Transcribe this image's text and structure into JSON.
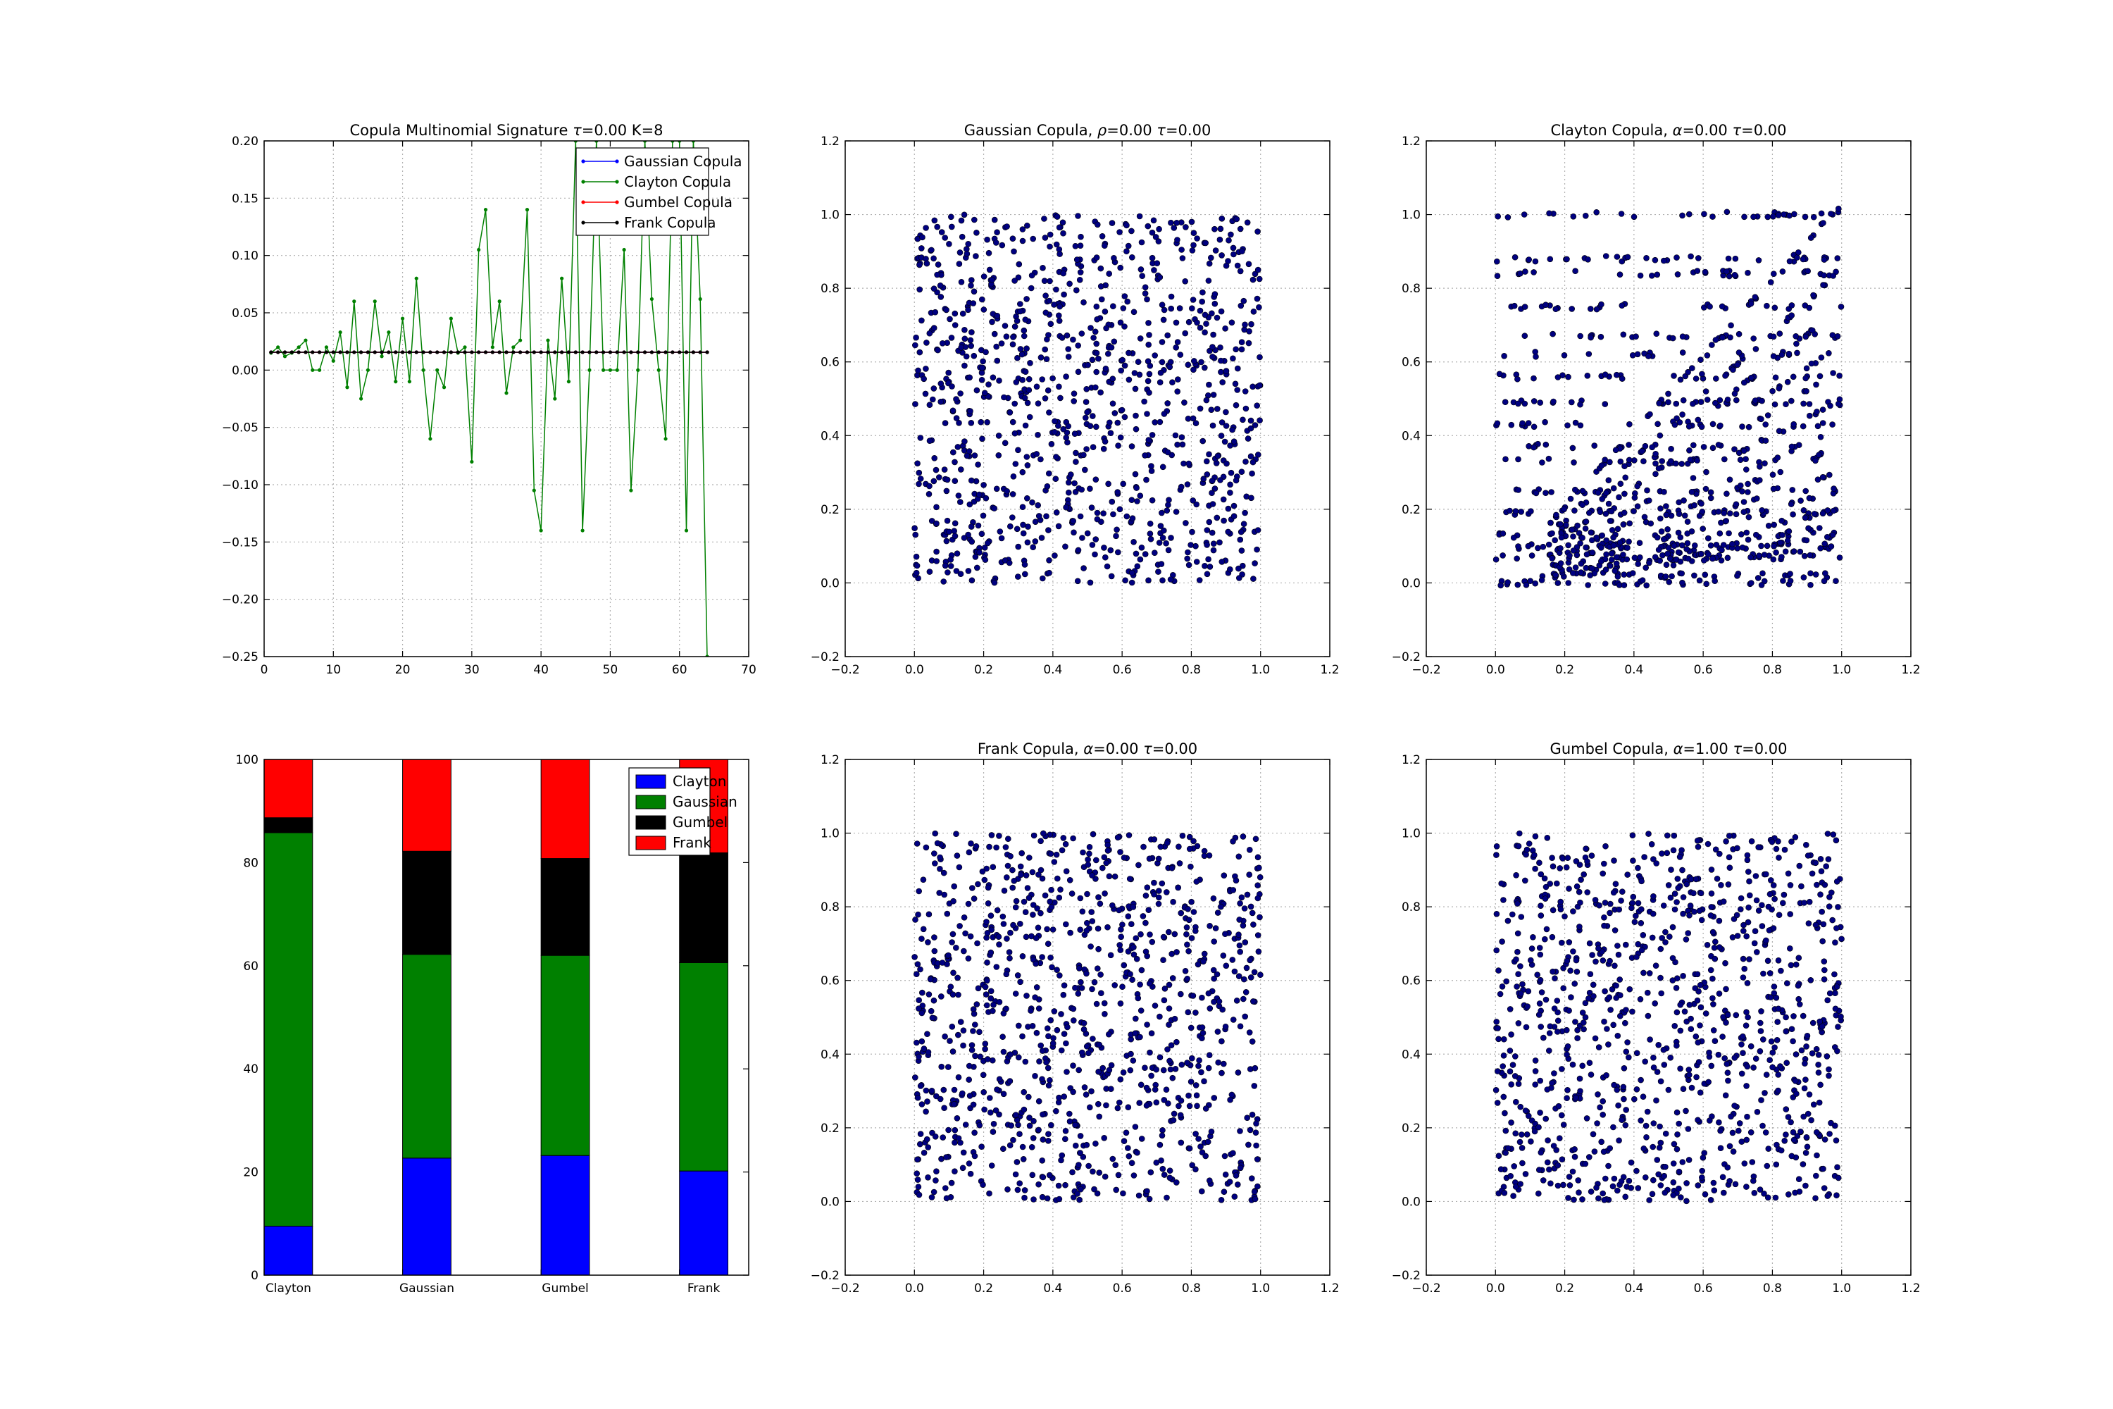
{
  "figure": {
    "panels": [
      {
        "id": "signature",
        "title_parts": [
          "Copula Multinomial Signature ",
          "τ",
          "=0.00 K=8"
        ]
      },
      {
        "id": "gaussian",
        "title_parts": [
          "Gaussian Copula, ",
          "ρ",
          "=0.00 ",
          "τ",
          "=0.00"
        ]
      },
      {
        "id": "clayton",
        "title_parts": [
          "Clayton Copula, ",
          "α",
          "=0.00 ",
          "τ",
          "=0.00"
        ]
      },
      {
        "id": "bars",
        "title_parts": []
      },
      {
        "id": "frank",
        "title_parts": [
          "Frank Copula, ",
          "α",
          "=0.00 ",
          "τ",
          "=0.00"
        ]
      },
      {
        "id": "gumbel",
        "title_parts": [
          "Gumbel Copula, ",
          "α",
          "=1.00 ",
          "τ",
          "=0.00"
        ]
      }
    ]
  },
  "chart_data": [
    {
      "type": "line",
      "panel": "signature",
      "title": "Copula Multinomial Signature τ=0.00 K=8",
      "xlim": [
        0,
        70
      ],
      "ylim": [
        -0.25,
        0.2
      ],
      "xticks": [
        "0",
        "10",
        "20",
        "30",
        "40",
        "50",
        "60",
        "70"
      ],
      "yticks": [
        "−0.25",
        "−0.20",
        "−0.15",
        "−0.10",
        "−0.05",
        "0.00",
        "0.05",
        "0.10",
        "0.15",
        "0.20"
      ],
      "grid": true,
      "legend_position": "top-right",
      "colors": {
        "Gaussian Copula": "#0000ff",
        "Clayton Copula": "#008000",
        "Gumbel Copula": "#ff0000",
        "Frank Copula": "#000000"
      },
      "series": [
        {
          "name": "Gaussian Copula",
          "x_start": 1,
          "x_end": 64,
          "constant": 0.0156
        },
        {
          "name": "Clayton Copula",
          "x": [
            1,
            2,
            3,
            4,
            5,
            6,
            7,
            8,
            9,
            10,
            11,
            12,
            13,
            14,
            15,
            16,
            17,
            18,
            19,
            20,
            21,
            22,
            23,
            24,
            25,
            26,
            27,
            28,
            29,
            30,
            31,
            32,
            33,
            34,
            35,
            36,
            37,
            38,
            39,
            40,
            41,
            42,
            43,
            44,
            45,
            46,
            47,
            48,
            49,
            50,
            51,
            52,
            53,
            54,
            55,
            56,
            57,
            58,
            59,
            60,
            61,
            62,
            63,
            64
          ],
          "y": [
            0.015,
            0.02,
            0.012,
            0.015,
            0.02,
            0.026,
            0.0,
            0.0,
            0.02,
            0.008,
            0.033,
            -0.015,
            0.06,
            -0.025,
            0.0,
            0.06,
            0.012,
            0.033,
            -0.01,
            0.045,
            -0.01,
            0.08,
            0.0,
            -0.06,
            0.0,
            -0.015,
            0.045,
            0.015,
            0.02,
            -0.08,
            0.105,
            0.14,
            0.02,
            0.06,
            -0.02,
            0.02,
            0.026,
            0.14,
            -0.105,
            -0.14,
            0.026,
            -0.025,
            0.08,
            -0.01,
            0.2,
            -0.14,
            0.0,
            0.2,
            0.0,
            0.0,
            0.0,
            0.105,
            -0.105,
            0.0,
            0.2,
            0.062,
            0.0,
            -0.06,
            0.2,
            0.2,
            -0.14,
            0.2,
            0.062,
            -0.25
          ]
        },
        {
          "name": "Gumbel Copula",
          "x_start": 1,
          "x_end": 64,
          "constant": 0.0156
        },
        {
          "name": "Frank Copula",
          "x_start": 1,
          "x_end": 64,
          "constant": 0.0156
        }
      ]
    },
    {
      "type": "scatter",
      "panel": "gaussian",
      "title": "Gaussian Copula, ρ=0.00 τ=0.00",
      "xlim": [
        -0.2,
        1.2
      ],
      "ylim": [
        -0.2,
        1.2
      ],
      "xticks": [
        "−0.2",
        "0.0",
        "0.2",
        "0.4",
        "0.6",
        "0.8",
        "1.0",
        "1.2"
      ],
      "yticks": [
        "−0.2",
        "0.0",
        "0.2",
        "0.4",
        "0.6",
        "0.8",
        "1.0",
        "1.2"
      ],
      "grid": true,
      "pattern": "independent uniform points on [0,1]×[0,1]",
      "n_points": 1000,
      "point_color": "#000080"
    },
    {
      "type": "scatter",
      "panel": "clayton",
      "title": "Clayton Copula, α=0.00 τ=0.00",
      "xlim": [
        -0.2,
        1.2
      ],
      "ylim": [
        -0.2,
        1.2
      ],
      "xticks": [
        "−0.2",
        "0.0",
        "0.2",
        "0.4",
        "0.6",
        "0.8",
        "1.0",
        "1.2"
      ],
      "yticks": [
        "−0.2",
        "0.0",
        "0.2",
        "0.4",
        "0.6",
        "0.8",
        "1.0",
        "1.2"
      ],
      "grid": true,
      "pattern": "points on rays from origin, clustered in horizontal bands",
      "n_points": 1000,
      "point_color": "#000080"
    },
    {
      "type": "bar",
      "stacked": true,
      "panel": "bars",
      "categories": [
        "Clayton",
        "Gaussian",
        "Gumbel",
        "Frank"
      ],
      "ylim": [
        0,
        100
      ],
      "yticks": [
        "0",
        "20",
        "40",
        "60",
        "80",
        "100"
      ],
      "grid": false,
      "legend_position": "top-right",
      "series": [
        {
          "name": "Clayton",
          "color": "#0000ff",
          "values": [
            9.5,
            22.7,
            23.2,
            20.2
          ]
        },
        {
          "name": "Gaussian",
          "color": "#008000",
          "values": [
            76.3,
            39.5,
            38.8,
            40.4
          ]
        },
        {
          "name": "Gumbel",
          "color": "#000000",
          "values": [
            2.9,
            20.0,
            18.8,
            21.3
          ]
        },
        {
          "name": "Frank",
          "color": "#ff0000",
          "values": [
            11.3,
            17.8,
            19.2,
            18.1
          ]
        }
      ]
    },
    {
      "type": "scatter",
      "panel": "frank",
      "title": "Frank Copula, α=0.00 τ=0.00",
      "xlim": [
        -0.2,
        1.2
      ],
      "ylim": [
        -0.2,
        1.2
      ],
      "xticks": [
        "−0.2",
        "0.0",
        "0.2",
        "0.4",
        "0.6",
        "0.8",
        "1.0",
        "1.2"
      ],
      "yticks": [
        "−0.2",
        "0.0",
        "0.2",
        "0.4",
        "0.6",
        "0.8",
        "1.0",
        "1.2"
      ],
      "grid": true,
      "pattern": "independent uniform points on [0,1]×[0,1]",
      "n_points": 1000,
      "point_color": "#000080"
    },
    {
      "type": "scatter",
      "panel": "gumbel",
      "title": "Gumbel Copula, α=1.00 τ=0.00",
      "xlim": [
        -0.2,
        1.2
      ],
      "ylim": [
        -0.2,
        1.2
      ],
      "xticks": [
        "−0.2",
        "0.0",
        "0.2",
        "0.4",
        "0.6",
        "0.8",
        "1.0",
        "1.2"
      ],
      "yticks": [
        "−0.2",
        "0.0",
        "0.2",
        "0.4",
        "0.6",
        "0.8",
        "1.0",
        "1.2"
      ],
      "grid": true,
      "pattern": "independent uniform points on [0,1]×[0,1]",
      "n_points": 1000,
      "point_color": "#000080"
    }
  ]
}
